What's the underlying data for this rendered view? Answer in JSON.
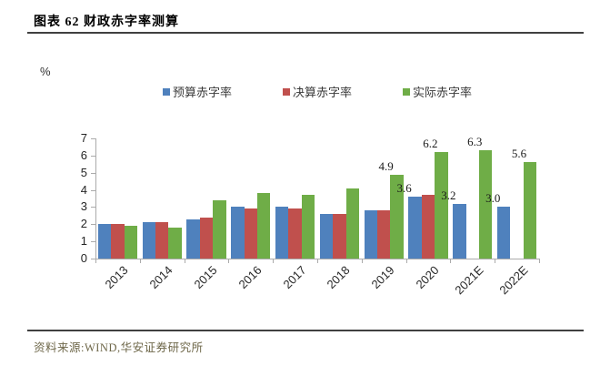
{
  "title": "图表 62 财政赤字率测算",
  "footer": {
    "source_label": "资料来源:WIND,华安证券研究所"
  },
  "chart_data": {
    "type": "bar",
    "title": "图表 62 财政赤字率测算",
    "unit_label": "%",
    "categories": [
      "2013",
      "2014",
      "2015",
      "2016",
      "2017",
      "2018",
      "2019",
      "2020",
      "2021E",
      "2022E"
    ],
    "series": [
      {
        "name": "预算赤字率",
        "color": "#4F81BD",
        "values": [
          2.0,
          2.1,
          2.3,
          3.0,
          3.0,
          2.6,
          2.8,
          3.6,
          3.2,
          3.0
        ],
        "labels": [
          null,
          null,
          null,
          null,
          null,
          null,
          null,
          "3.6",
          "3.2",
          "3.0"
        ]
      },
      {
        "name": "决算赤字率",
        "color": "#C0504D",
        "values": [
          2.0,
          2.1,
          2.4,
          2.9,
          2.9,
          2.6,
          2.8,
          3.7,
          null,
          null
        ],
        "labels": [
          null,
          null,
          null,
          null,
          null,
          null,
          null,
          null,
          null,
          null
        ]
      },
      {
        "name": "实际赤字率",
        "color": "#6FAD47",
        "values": [
          1.9,
          1.8,
          3.4,
          3.8,
          3.7,
          4.1,
          4.9,
          6.2,
          6.3,
          5.6
        ],
        "labels": [
          null,
          null,
          null,
          null,
          null,
          null,
          "4.9",
          "6.2",
          "6.3",
          "5.6"
        ]
      }
    ],
    "ylim": [
      0,
      7
    ],
    "yticks": [
      0,
      1,
      2,
      3,
      4,
      5,
      6,
      7
    ],
    "legend_position": "top",
    "grid": false
  }
}
